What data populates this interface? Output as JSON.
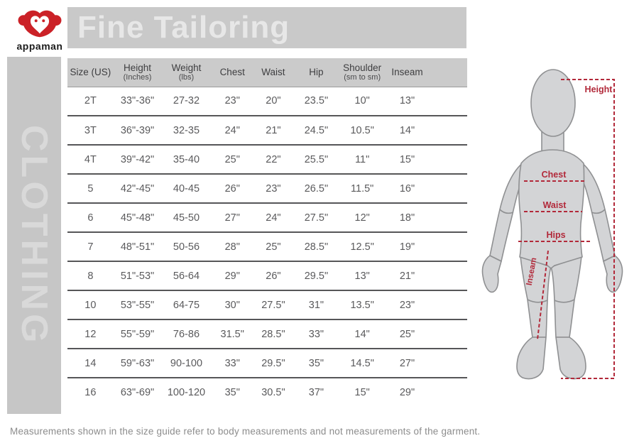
{
  "brand": {
    "name": "appaman",
    "logo_color": "#cb2127"
  },
  "header": {
    "title": "Fine Tailoring",
    "banner_color": "#c9c9c9"
  },
  "sidebar": {
    "vertical_label": "CLOTHING",
    "background_color": "#c6c6c6"
  },
  "table": {
    "columns": [
      {
        "label": "Size (US)",
        "sub": ""
      },
      {
        "label": "Height",
        "sub": "(Inches)"
      },
      {
        "label": "Weight",
        "sub": "(lbs)"
      },
      {
        "label": "Chest",
        "sub": ""
      },
      {
        "label": "Waist",
        "sub": ""
      },
      {
        "label": "Hip",
        "sub": ""
      },
      {
        "label": "Shoulder",
        "sub": "(sm to sm)"
      },
      {
        "label": "Inseam",
        "sub": ""
      }
    ],
    "rows": [
      [
        "2T",
        "33\"-36\"",
        "27-32",
        "23\"",
        "20\"",
        "23.5\"",
        "10\"",
        "13\""
      ],
      [
        "3T",
        "36\"-39\"",
        "32-35",
        "24\"",
        "21\"",
        "24.5\"",
        "10.5\"",
        "14\""
      ],
      [
        "4T",
        "39\"-42\"",
        "35-40",
        "25\"",
        "22\"",
        "25.5\"",
        "11\"",
        "15\""
      ],
      [
        "5",
        "42\"-45\"",
        "40-45",
        "26\"",
        "23\"",
        "26.5\"",
        "11.5\"",
        "16\""
      ],
      [
        "6",
        "45\"-48\"",
        "45-50",
        "27\"",
        "24\"",
        "27.5\"",
        "12\"",
        "18\""
      ],
      [
        "7",
        "48\"-51\"",
        "50-56",
        "28\"",
        "25\"",
        "28.5\"",
        "12.5\"",
        "19\""
      ],
      [
        "8",
        "51\"-53\"",
        "56-64",
        "29\"",
        "26\"",
        "29.5\"",
        "13\"",
        "21\""
      ],
      [
        "10",
        "53\"-55\"",
        "64-75",
        "30\"",
        "27.5\"",
        "31\"",
        "13.5\"",
        "23\""
      ],
      [
        "12",
        "55\"-59\"",
        "76-86",
        "31.5\"",
        "28.5\"",
        "33\"",
        "14\"",
        "25\""
      ],
      [
        "14",
        "59\"-63\"",
        "90-100",
        "33\"",
        "29.5\"",
        "35\"",
        "14.5\"",
        "27\""
      ],
      [
        "16",
        "63\"-69\"",
        "100-120",
        "35\"",
        "30.5\"",
        "37\"",
        "15\"",
        "29\""
      ]
    ]
  },
  "diagram": {
    "labels": {
      "height": "Height",
      "chest": "Chest",
      "waist": "Waist",
      "hips": "Hips",
      "inseam": "Inseam"
    },
    "accent_color": "#b2293a",
    "figure_fill": "#d3d4d6"
  },
  "footer": {
    "note": "Measurements shown in the size guide refer to body measurements and not measurements of the garment."
  }
}
